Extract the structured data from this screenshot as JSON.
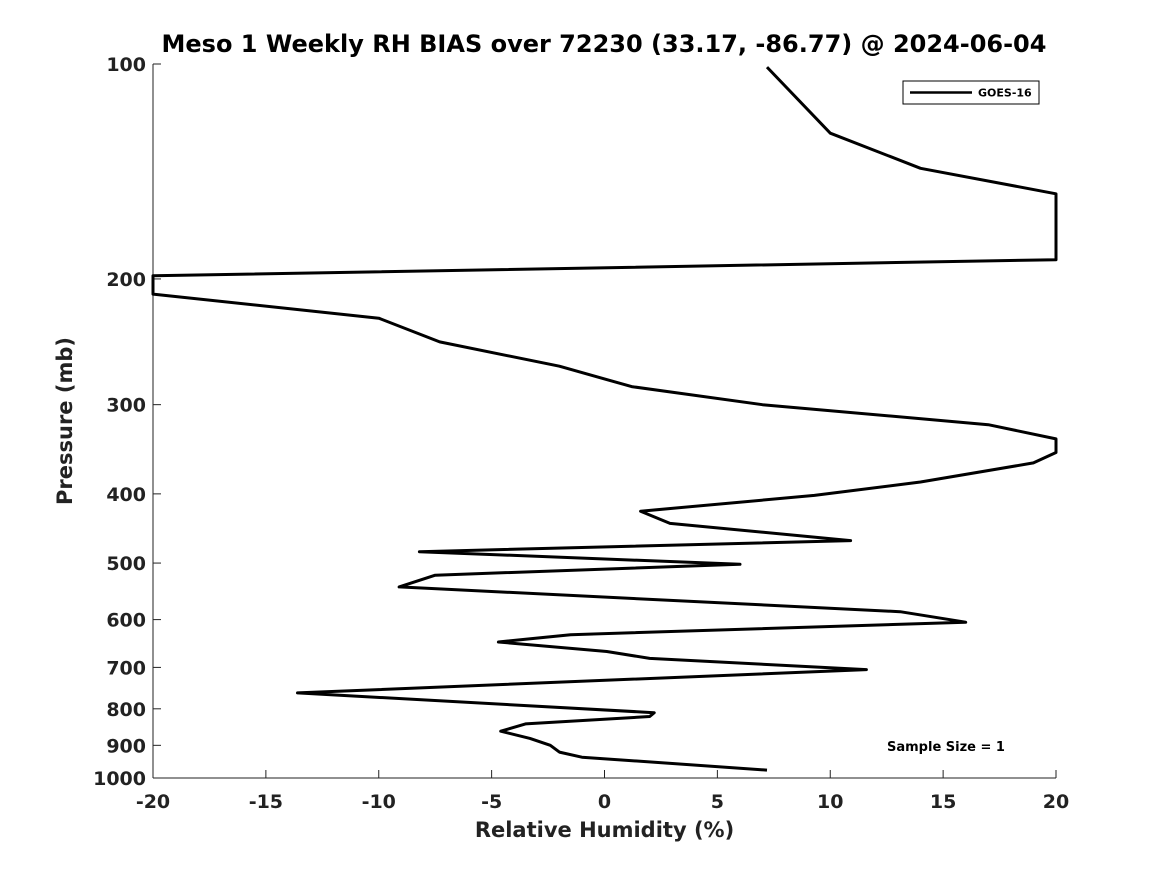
{
  "chart_data": {
    "type": "line",
    "title": "Meso 1 Weekly RH BIAS over 72230 (33.17, -86.77) @ 2024-06-04",
    "xlabel": "Relative Humidity (%)",
    "ylabel": "Pressure (mb)",
    "xlim": [
      -20,
      20
    ],
    "ylim": [
      100,
      1000
    ],
    "yscale": "log",
    "yreversed": true,
    "grid": false,
    "legend_position": "top-right",
    "x_ticks": [
      -20,
      -15,
      -10,
      -5,
      0,
      5,
      10,
      15,
      20
    ],
    "x_tick_labels": [
      "-20",
      "-15",
      "-10",
      "-5",
      "0",
      "5",
      "10",
      "15",
      "20"
    ],
    "y_ticks": [
      100,
      200,
      300,
      400,
      500,
      600,
      700,
      800,
      900,
      1000
    ],
    "y_tick_labels": [
      "100",
      "200",
      "300",
      "400",
      "500",
      "600",
      "700",
      "800",
      "900",
      "1000"
    ],
    "annotation": "Sample Size = 1",
    "series": [
      {
        "name": "GOES-16",
        "color": "#000000",
        "points": [
          [
            7.2,
            975
          ],
          [
            -1.0,
            935
          ],
          [
            -2.0,
            920
          ],
          [
            -2.4,
            900
          ],
          [
            -3.3,
            880
          ],
          [
            -4.6,
            860
          ],
          [
            -3.5,
            840
          ],
          [
            2.0,
            820
          ],
          [
            2.2,
            810
          ],
          [
            -13.6,
            760
          ],
          [
            11.6,
            705
          ],
          [
            2.0,
            680
          ],
          [
            0.1,
            665
          ],
          [
            -4.7,
            645
          ],
          [
            -1.5,
            630
          ],
          [
            16.0,
            605
          ],
          [
            13.1,
            585
          ],
          [
            -9.1,
            540
          ],
          [
            -7.5,
            520
          ],
          [
            6.0,
            502
          ],
          [
            -8.2,
            482
          ],
          [
            10.9,
            465
          ],
          [
            2.9,
            440
          ],
          [
            1.6,
            423
          ],
          [
            9.3,
            402
          ],
          [
            14.0,
            385
          ],
          [
            19.0,
            362
          ],
          [
            20.0,
            350
          ],
          [
            20.0,
            335
          ],
          [
            17.0,
            320
          ],
          [
            7.0,
            300
          ],
          [
            1.2,
            283
          ],
          [
            -2.0,
            265
          ],
          [
            -7.3,
            245
          ],
          [
            -10.0,
            227
          ],
          [
            -20.0,
            210
          ],
          [
            -20.0,
            198
          ],
          [
            20.0,
            188
          ],
          [
            20.0,
            152
          ],
          [
            14.0,
            140
          ],
          [
            10.0,
            125
          ],
          [
            7.2,
            101
          ]
        ]
      }
    ]
  }
}
